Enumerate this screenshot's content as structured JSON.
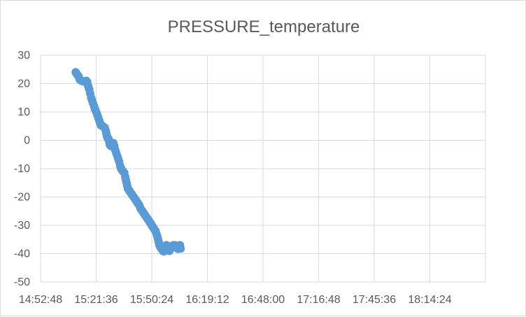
{
  "chart_data": {
    "type": "scatter",
    "title": "PRESSURE_temperature",
    "xlabel": "",
    "ylabel": "",
    "x_ticks": [
      "14:52:48",
      "15:21:36",
      "15:50:24",
      "16:19:12",
      "16:48:00",
      "17:16:48",
      "17:45:36",
      "18:14:24"
    ],
    "y_ticks": [
      "30",
      "20",
      "10",
      "0",
      "-10",
      "-20",
      "-30",
      "-40",
      "-50"
    ],
    "xlim": [
      "14:52:48",
      "18:43:12"
    ],
    "ylim": [
      -50,
      30
    ],
    "grid": true,
    "legend": "none",
    "marker_color": "#5b9bd5",
    "series": [
      {
        "points": [
          [
            "15:11:00",
            24
          ],
          [
            "15:11:30",
            23.5
          ],
          [
            "15:12:00",
            23
          ],
          [
            "15:12:30",
            22.5
          ],
          [
            "15:13:00",
            21.5
          ],
          [
            "15:14:00",
            21
          ],
          [
            "15:15:00",
            20.8
          ],
          [
            "15:16:00",
            20.6
          ],
          [
            "15:16:30",
            21
          ],
          [
            "15:17:00",
            20.5
          ],
          [
            "15:17:30",
            19
          ],
          [
            "15:18:00",
            18
          ],
          [
            "15:18:30",
            16.5
          ],
          [
            "15:19:00",
            15
          ],
          [
            "15:19:30",
            14
          ],
          [
            "15:20:00",
            13
          ],
          [
            "15:20:30",
            12
          ],
          [
            "15:21:00",
            11
          ],
          [
            "15:21:36",
            10
          ],
          [
            "15:22:10",
            9
          ],
          [
            "15:22:40",
            8
          ],
          [
            "15:23:10",
            7
          ],
          [
            "15:23:40",
            6
          ],
          [
            "15:24:10",
            5.2
          ],
          [
            "15:25:00",
            5
          ],
          [
            "15:26:00",
            4.5
          ],
          [
            "15:26:30",
            3.5
          ],
          [
            "15:26:50",
            2.5
          ],
          [
            "15:27:10",
            1.5
          ],
          [
            "15:27:30",
            0.8
          ],
          [
            "15:28:00",
            0.5
          ],
          [
            "15:28:20",
            -0.5
          ],
          [
            "15:28:40",
            -1.5
          ],
          [
            "15:29:10",
            -2
          ],
          [
            "15:30:00",
            -1.5
          ],
          [
            "15:30:30",
            -1
          ],
          [
            "15:31:00",
            -2
          ],
          [
            "15:31:30",
            -3.5
          ],
          [
            "15:32:00",
            -4.5
          ],
          [
            "15:32:30",
            -5.5
          ],
          [
            "15:33:00",
            -6.5
          ],
          [
            "15:33:30",
            -7.5
          ],
          [
            "15:34:00",
            -9
          ],
          [
            "15:34:30",
            -10
          ],
          [
            "15:35:00",
            -10.5
          ],
          [
            "15:35:30",
            -11
          ],
          [
            "15:36:10",
            -11.5
          ],
          [
            "15:36:40",
            -13
          ],
          [
            "15:37:00",
            -14
          ],
          [
            "15:37:20",
            -15
          ],
          [
            "15:37:40",
            -16
          ],
          [
            "15:38:00",
            -17
          ],
          [
            "15:38:30",
            -17.5
          ],
          [
            "15:39:00",
            -18
          ],
          [
            "15:39:30",
            -18.5
          ],
          [
            "15:40:00",
            -19
          ],
          [
            "15:40:30",
            -19.5
          ],
          [
            "15:41:00",
            -20
          ],
          [
            "15:41:30",
            -20.5
          ],
          [
            "15:42:00",
            -21
          ],
          [
            "15:42:30",
            -21.5
          ],
          [
            "15:43:00",
            -22
          ],
          [
            "15:43:30",
            -22.5
          ],
          [
            "15:44:00",
            -23
          ],
          [
            "15:44:30",
            -24
          ],
          [
            "15:45:00",
            -24.5
          ],
          [
            "15:45:30",
            -25
          ],
          [
            "15:46:00",
            -25.5
          ],
          [
            "15:46:30",
            -26
          ],
          [
            "15:47:00",
            -26.5
          ],
          [
            "15:47:30",
            -27
          ],
          [
            "15:48:00",
            -27.5
          ],
          [
            "15:48:30",
            -28
          ],
          [
            "15:49:00",
            -28.5
          ],
          [
            "15:49:30",
            -29
          ],
          [
            "15:50:00",
            -29.5
          ],
          [
            "15:50:24",
            -30
          ],
          [
            "15:50:50",
            -30.5
          ],
          [
            "15:51:20",
            -31
          ],
          [
            "15:51:50",
            -31.5
          ],
          [
            "15:52:20",
            -32
          ],
          [
            "15:52:50",
            -33
          ],
          [
            "15:53:20",
            -34
          ],
          [
            "15:53:40",
            -35
          ],
          [
            "15:54:00",
            -36
          ],
          [
            "15:54:20",
            -37
          ],
          [
            "15:54:40",
            -37.5
          ],
          [
            "15:55:10",
            -38
          ],
          [
            "15:55:40",
            -38.5
          ],
          [
            "15:56:10",
            -39
          ],
          [
            "15:56:40",
            -39.2
          ],
          [
            "15:57:10",
            -38.5
          ],
          [
            "15:57:40",
            -37.5
          ],
          [
            "15:58:00",
            -37
          ],
          [
            "15:58:30",
            -37.5
          ],
          [
            "15:59:00",
            -38.5
          ],
          [
            "15:59:30",
            -39
          ],
          [
            "16:00:00",
            -38.5
          ],
          [
            "16:00:30",
            -38
          ],
          [
            "16:01:00",
            -37.5
          ],
          [
            "16:01:30",
            -37
          ],
          [
            "16:02:00",
            -37.5
          ],
          [
            "16:02:30",
            -37
          ],
          [
            "16:03:00",
            -37.5
          ],
          [
            "16:03:30",
            -38
          ],
          [
            "16:04:00",
            -38.3
          ],
          [
            "16:04:30",
            -37.5
          ],
          [
            "16:05:00",
            -37
          ],
          [
            "16:05:20",
            -38.2
          ]
        ]
      }
    ]
  }
}
